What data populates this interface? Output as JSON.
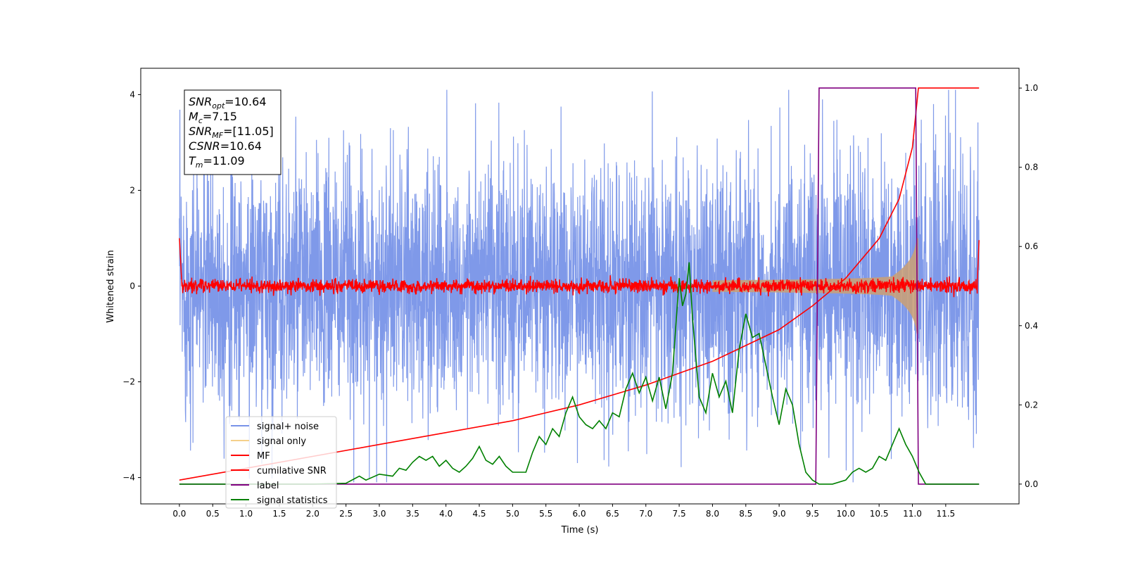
{
  "chart_data": {
    "type": "line",
    "xlabel": "Time (s)",
    "ylabel": "Whitened strain",
    "xlim": [
      -0.58,
      12.6
    ],
    "ylim_left": [
      -4.55,
      4.55
    ],
    "ylim_right": [
      -0.05,
      1.05
    ],
    "x_ticks": [
      "0.0",
      "0.5",
      "1.0",
      "1.5",
      "2.0",
      "2.5",
      "3.0",
      "3.5",
      "4.0",
      "4.5",
      "5.0",
      "5.5",
      "6.0",
      "6.5",
      "7.0",
      "7.5",
      "8.0",
      "8.5",
      "9.0",
      "9.5",
      "10.0",
      "10.5",
      "11.0",
      "11.5"
    ],
    "y_ticks_left": [
      -4,
      -2,
      0,
      2,
      4
    ],
    "y_ticks_right": [
      "0.0",
      "0.2",
      "0.4",
      "0.6",
      "0.8",
      "1.0"
    ],
    "info_box": [
      {
        "sym": "SNR",
        "sub": "opt",
        "value": "=10.64"
      },
      {
        "sym": "M",
        "sub": "c",
        "value": "=7.15"
      },
      {
        "sym": "SNR",
        "sub": "MF",
        "value": "=[11.05]"
      },
      {
        "sym": "CSNR",
        "sub": "",
        "value": "=10.64"
      },
      {
        "sym": "T",
        "sub": "m",
        "value": "=11.09"
      }
    ],
    "legend": [
      {
        "label": "signal+ noise",
        "color": "#7893e8"
      },
      {
        "label": "signal only",
        "color": "#f5d08a"
      },
      {
        "label": "MF",
        "color": "#ff0000"
      },
      {
        "label": "cumilative SNR",
        "color": "#ff0000"
      },
      {
        "label": "label",
        "color": "#800080"
      },
      {
        "label": "signal statistics",
        "color": "#008000"
      }
    ],
    "series": [
      {
        "name": "signal+ noise",
        "axis": "left",
        "color": "#7893e8",
        "x_range": [
          0,
          12
        ],
        "amplitude_approx": 4.1,
        "kind": "noise"
      },
      {
        "name": "signal only",
        "axis": "left",
        "color": "#c8a07a",
        "x_range": [
          8,
          11.09
        ],
        "peak_amplitude": 1.0,
        "kind": "chirp"
      },
      {
        "name": "MF",
        "axis": "left",
        "color": "#ff0000",
        "x_range": [
          0,
          12
        ],
        "amplitude_approx": 0.25,
        "kind": "noise"
      },
      {
        "name": "cumilative SNR",
        "axis": "right",
        "color": "#ff0000",
        "x": [
          0,
          1,
          2,
          3,
          4,
          5,
          6,
          7,
          8,
          9,
          9.5,
          10,
          10.5,
          10.8,
          11.0,
          11.09,
          12
        ],
        "y": [
          0.01,
          0.04,
          0.07,
          0.1,
          0.13,
          0.16,
          0.2,
          0.25,
          0.31,
          0.39,
          0.45,
          0.52,
          0.62,
          0.72,
          0.85,
          1.0,
          1.0
        ]
      },
      {
        "name": "label",
        "axis": "right",
        "color": "#800080",
        "x": [
          0,
          9.55,
          9.6,
          11.05,
          11.09,
          12
        ],
        "y": [
          0.0,
          0.0,
          1.0,
          1.0,
          0.0,
          0.0
        ]
      },
      {
        "name": "signal statistics",
        "axis": "right",
        "color": "#008000",
        "x": [
          0,
          0.5,
          1.0,
          1.5,
          2.0,
          2.5,
          2.7,
          2.8,
          3.0,
          3.2,
          3.3,
          3.4,
          3.5,
          3.6,
          3.7,
          3.8,
          3.9,
          4.0,
          4.1,
          4.2,
          4.3,
          4.4,
          4.5,
          4.6,
          4.7,
          4.8,
          4.9,
          5.0,
          5.1,
          5.2,
          5.3,
          5.4,
          5.5,
          5.6,
          5.7,
          5.8,
          5.9,
          6.0,
          6.1,
          6.2,
          6.3,
          6.4,
          6.5,
          6.6,
          6.7,
          6.8,
          6.9,
          7.0,
          7.1,
          7.2,
          7.3,
          7.4,
          7.5,
          7.55,
          7.6,
          7.65,
          7.7,
          7.8,
          7.9,
          8.0,
          8.1,
          8.2,
          8.3,
          8.4,
          8.5,
          8.6,
          8.7,
          8.8,
          8.9,
          9.0,
          9.1,
          9.2,
          9.3,
          9.4,
          9.5,
          9.6,
          9.8,
          10.0,
          10.1,
          10.2,
          10.3,
          10.4,
          10.5,
          10.6,
          10.7,
          10.8,
          10.9,
          11.0,
          11.1,
          11.2,
          12
        ],
        "y": [
          0.0,
          0.0,
          0.0,
          0.0,
          0.0,
          0.002,
          0.02,
          0.01,
          0.025,
          0.02,
          0.04,
          0.035,
          0.055,
          0.07,
          0.06,
          0.07,
          0.045,
          0.06,
          0.04,
          0.03,
          0.045,
          0.065,
          0.095,
          0.06,
          0.05,
          0.07,
          0.045,
          0.03,
          0.03,
          0.03,
          0.08,
          0.12,
          0.1,
          0.14,
          0.12,
          0.18,
          0.22,
          0.17,
          0.15,
          0.14,
          0.16,
          0.14,
          0.18,
          0.17,
          0.24,
          0.28,
          0.23,
          0.27,
          0.21,
          0.27,
          0.19,
          0.28,
          0.52,
          0.45,
          0.48,
          0.56,
          0.42,
          0.22,
          0.18,
          0.28,
          0.22,
          0.26,
          0.18,
          0.34,
          0.43,
          0.37,
          0.38,
          0.3,
          0.22,
          0.15,
          0.24,
          0.2,
          0.1,
          0.03,
          0.01,
          0.0,
          0.0,
          0.01,
          0.03,
          0.04,
          0.03,
          0.04,
          0.07,
          0.06,
          0.1,
          0.14,
          0.1,
          0.07,
          0.03,
          0.0,
          0.0
        ]
      }
    ]
  }
}
